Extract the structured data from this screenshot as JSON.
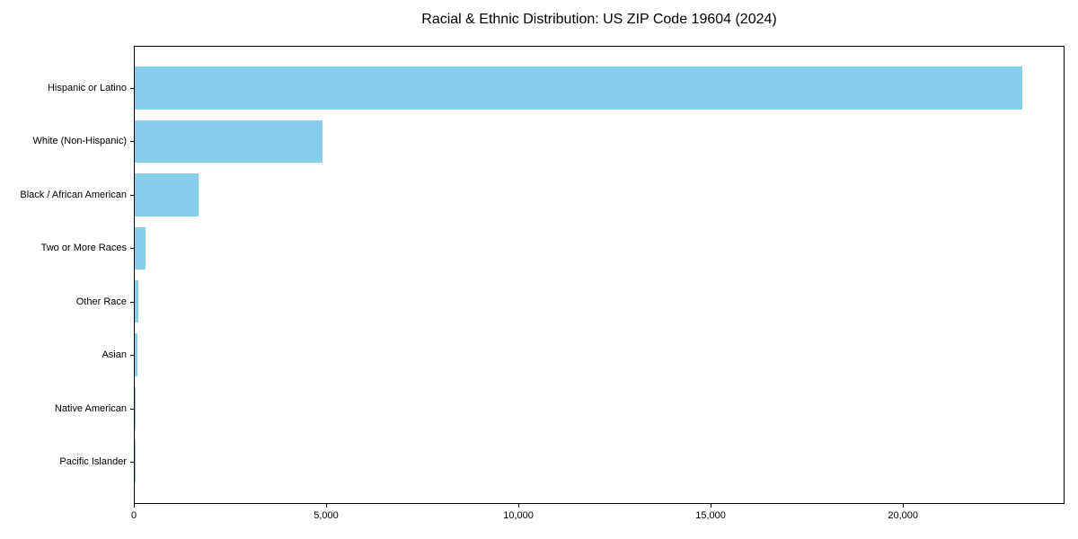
{
  "figure": {
    "title": "Racial & Ethnic Distribution: US ZIP Code 19604 (2024)"
  },
  "chart_data": {
    "type": "bar",
    "orientation": "horizontal",
    "title": "Racial & Ethnic Distribution: US ZIP Code 19604 (2024)",
    "xlabel": "",
    "ylabel": "",
    "categories": [
      "Hispanic or Latino",
      "White (Non-Hispanic)",
      "Black / African American",
      "Two or More Races",
      "Other Race",
      "Asian",
      "Native American",
      "Pacific Islander"
    ],
    "values": [
      23080,
      4880,
      1660,
      280,
      100,
      80,
      20,
      10
    ],
    "xlim": [
      0,
      24200
    ],
    "x_ticks": [
      {
        "value": 0,
        "label": "0"
      },
      {
        "value": 5000,
        "label": "5,000"
      },
      {
        "value": 10000,
        "label": "10,000"
      },
      {
        "value": 15000,
        "label": "15,000"
      },
      {
        "value": 20000,
        "label": "20,000"
      }
    ],
    "bar_color": "#87CEEB",
    "axis_color": "#000000",
    "background_color": "#ffffff",
    "grid": false,
    "legend": null
  }
}
